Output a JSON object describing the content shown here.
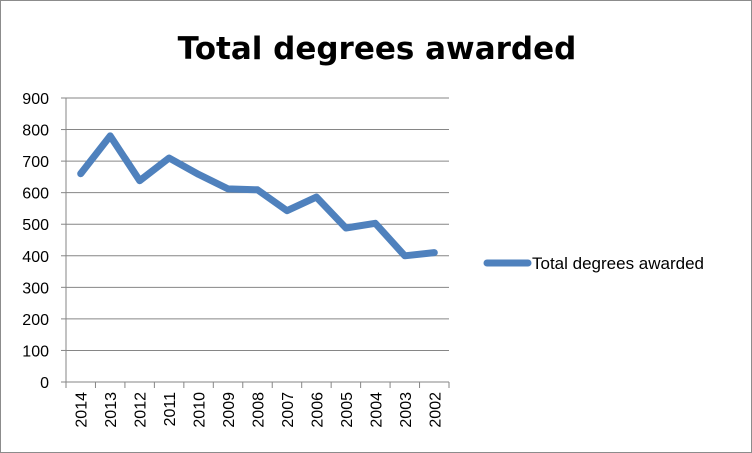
{
  "chart_data": {
    "type": "line",
    "title": "Total degrees awarded",
    "xlabel": "",
    "ylabel": "",
    "ylim": [
      0,
      900
    ],
    "y_ticks": [
      0,
      100,
      200,
      300,
      400,
      500,
      600,
      700,
      800,
      900
    ],
    "categories": [
      "2014",
      "2013",
      "2012",
      "2011",
      "2010",
      "2009",
      "2008",
      "2007",
      "2006",
      "2005",
      "2004",
      "2003",
      "2002"
    ],
    "series": [
      {
        "name": "Total degrees awarded",
        "color": "#4f81bd",
        "values": [
          660,
          780,
          638,
          710,
          658,
          612,
          609,
          543,
          586,
          488,
          503,
          400,
          410
        ]
      }
    ],
    "grid": "horizontal",
    "legend": "right"
  }
}
